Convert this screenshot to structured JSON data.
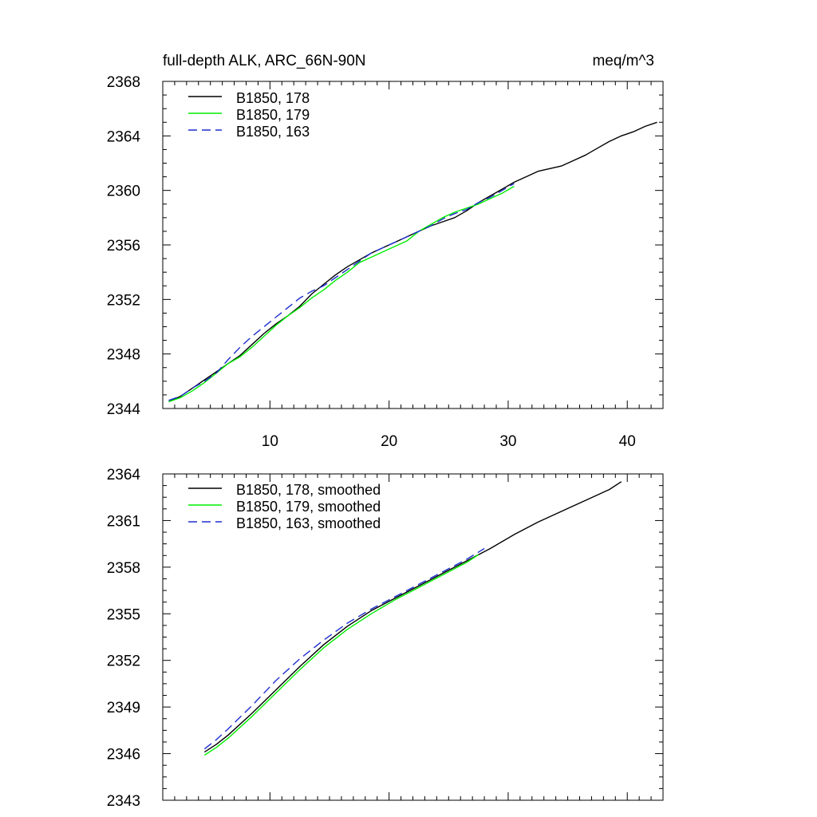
{
  "colors": {
    "178": "#000000",
    "179": "#00ee00",
    "163": "#1f2fcf"
  },
  "chart_data": [
    {
      "type": "line",
      "title": "full-depth ALK, ARC_66N-90N",
      "units": "meq/m^3",
      "xlim": [
        1,
        43
      ],
      "ylim": [
        2344,
        2368
      ],
      "xticks": [
        10,
        20,
        30,
        40
      ],
      "yticks": [
        2344,
        2348,
        2352,
        2356,
        2360,
        2364,
        2368
      ],
      "ytick_labels": [
        "2344",
        "2348",
        "2352",
        "2356",
        "2360",
        "2364",
        "2368"
      ],
      "legend_position": "top-left",
      "series": [
        {
          "name": "B1850, 178",
          "color_key": "178",
          "dash": "solid",
          "x": [
            1.5,
            2.5,
            3.5,
            4.5,
            5.5,
            6.5,
            7.5,
            8.5,
            9.5,
            10.5,
            11.5,
            12.5,
            13.5,
            14.5,
            15.5,
            16.5,
            17.5,
            18.5,
            19.5,
            20.5,
            21.5,
            22.5,
            23.5,
            24.5,
            25.5,
            26.5,
            27.5,
            28.5,
            29.5,
            30.5,
            31.5,
            32.5,
            33.5,
            34.5,
            35.5,
            36.5,
            37.5,
            38.5,
            39.5,
            40.5,
            41.5,
            42.5
          ],
          "y": [
            2344.5,
            2344.9,
            2345.5,
            2346.1,
            2346.7,
            2347.3,
            2347.9,
            2348.7,
            2349.5,
            2350.2,
            2350.8,
            2351.5,
            2352.4,
            2353.1,
            2353.8,
            2354.4,
            2354.9,
            2355.4,
            2355.8,
            2356.2,
            2356.6,
            2357.0,
            2357.4,
            2357.7,
            2358.0,
            2358.5,
            2359.1,
            2359.6,
            2360.1,
            2360.6,
            2361.0,
            2361.4,
            2361.6,
            2361.8,
            2362.2,
            2362.6,
            2363.1,
            2363.6,
            2364.0,
            2364.3,
            2364.7,
            2365.0
          ]
        },
        {
          "name": "B1850, 179",
          "color_key": "179",
          "dash": "solid",
          "x": [
            1.5,
            2.5,
            3.5,
            4.5,
            5.5,
            6.5,
            7.5,
            8.5,
            9.5,
            10.5,
            11.5,
            12.5,
            13.5,
            14.5,
            15.5,
            16.5,
            17.5,
            18.5,
            19.5,
            20.5,
            21.5,
            22.5,
            23.5,
            24.5,
            25.5,
            26.5,
            27.5,
            28.5,
            29.5,
            30.5
          ],
          "y": [
            2344.5,
            2344.8,
            2345.3,
            2345.9,
            2346.6,
            2347.3,
            2347.8,
            2348.5,
            2349.3,
            2350.1,
            2350.8,
            2351.4,
            2352.1,
            2352.7,
            2353.4,
            2354.0,
            2354.7,
            2355.1,
            2355.5,
            2355.9,
            2356.3,
            2357.0,
            2357.5,
            2358.0,
            2358.4,
            2358.7,
            2359.0,
            2359.4,
            2359.8,
            2360.3
          ]
        },
        {
          "name": "B1850, 163",
          "color_key": "163",
          "dash": "dashed",
          "x": [
            1.5,
            2.5,
            3.5,
            4.5,
            5.5,
            6.5,
            7.5,
            8.5,
            9.5,
            10.5,
            11.5,
            12.5,
            13.5,
            14.5,
            15.5,
            16.5,
            17.5,
            18.5,
            19.5,
            20.5,
            21.5,
            22.5,
            23.5,
            24.5,
            25.5,
            26.5,
            27.5,
            28.5,
            29.5,
            30.5
          ],
          "y": [
            2344.6,
            2344.9,
            2345.5,
            2346.0,
            2346.6,
            2347.6,
            2348.5,
            2349.3,
            2350.0,
            2350.7,
            2351.4,
            2352.1,
            2352.6,
            2353.0,
            2353.6,
            2354.2,
            2354.8,
            2355.4,
            2355.8,
            2356.2,
            2356.6,
            2357.0,
            2357.4,
            2357.9,
            2358.3,
            2358.6,
            2359.1,
            2359.5,
            2360.0,
            2360.5
          ]
        }
      ]
    },
    {
      "type": "line",
      "xlim": [
        1,
        43
      ],
      "ylim": [
        2343,
        2364
      ],
      "xticks": [
        10,
        20,
        30,
        40
      ],
      "yticks": [
        2343,
        2346,
        2349,
        2352,
        2355,
        2358,
        2361,
        2364
      ],
      "ytick_labels": [
        "2343",
        "2346",
        "2349",
        "2352",
        "2355",
        "2358",
        "2361",
        "2364"
      ],
      "legend_position": "top-left",
      "series": [
        {
          "name": "B1850, 178, smoothed",
          "color_key": "178",
          "dash": "solid",
          "x": [
            4.5,
            5.5,
            6.5,
            8.5,
            10.5,
            12.5,
            14.5,
            16.5,
            18.5,
            20.5,
            22.5,
            24.5,
            26.5,
            28.5,
            30.5,
            32.5,
            34.5,
            36.5,
            38.5,
            39.5
          ],
          "y": [
            2346.1,
            2346.6,
            2347.2,
            2348.6,
            2350.1,
            2351.6,
            2353.0,
            2354.2,
            2355.2,
            2356.0,
            2356.8,
            2357.6,
            2358.4,
            2359.2,
            2360.1,
            2360.9,
            2361.6,
            2362.3,
            2363.0,
            2363.5
          ]
        },
        {
          "name": "B1850, 179, smoothed",
          "color_key": "179",
          "dash": "solid",
          "x": [
            4.5,
            5.5,
            6.5,
            8.5,
            10.5,
            12.5,
            14.5,
            16.5,
            18.5,
            20.5,
            22.5,
            24.5,
            26.5,
            27.5
          ],
          "y": [
            2345.9,
            2346.4,
            2347.0,
            2348.4,
            2349.9,
            2351.4,
            2352.8,
            2354.0,
            2355.0,
            2355.9,
            2356.7,
            2357.5,
            2358.3,
            2358.8
          ]
        },
        {
          "name": "B1850, 163, smoothed",
          "color_key": "163",
          "dash": "dashed",
          "x": [
            4.5,
            5.5,
            6.5,
            8.5,
            10.5,
            12.5,
            14.5,
            16.5,
            18.5,
            20.5,
            22.5,
            24.5,
            26.5,
            28.0
          ],
          "y": [
            2346.3,
            2346.9,
            2347.6,
            2349.1,
            2350.7,
            2352.1,
            2353.3,
            2354.4,
            2355.3,
            2356.1,
            2356.9,
            2357.7,
            2358.5,
            2359.2
          ]
        }
      ]
    }
  ]
}
